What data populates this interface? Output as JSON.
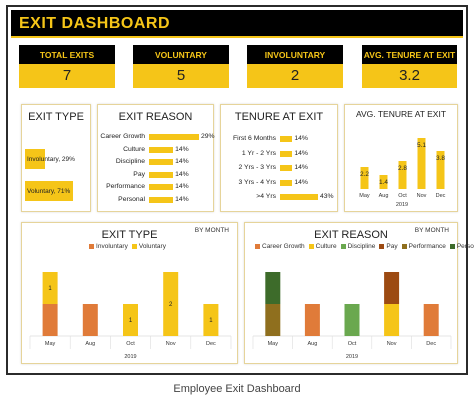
{
  "header": {
    "title": "EXIT DASHBOARD"
  },
  "kpis": [
    {
      "label": "TOTAL EXITS",
      "value": "7"
    },
    {
      "label": "VOLUNTARY",
      "value": "5"
    },
    {
      "label": "INVOLUNTARY",
      "value": "2"
    },
    {
      "label": "AVG. TENURE AT EXIT",
      "value": "3.2"
    }
  ],
  "colors": {
    "gold": "#f5c518",
    "orange": "#e07b39",
    "green": "#6aa84f",
    "darkgreen": "#3d6b2a",
    "brown": "#9c4a12",
    "olive": "#8f6f1e"
  },
  "exit_type": {
    "title": "EXIT TYPE",
    "items": [
      {
        "label": "Involuntary, 29%",
        "value": 29
      },
      {
        "label": "Voluntary, 71%",
        "value": 71
      }
    ]
  },
  "exit_reason": {
    "title": "EXIT REASON",
    "items": [
      {
        "label": "Career Growth",
        "pct": "29%",
        "value": 29
      },
      {
        "label": "Culture",
        "pct": "14%",
        "value": 14
      },
      {
        "label": "Discipline",
        "pct": "14%",
        "value": 14
      },
      {
        "label": "Pay",
        "pct": "14%",
        "value": 14
      },
      {
        "label": "Performance",
        "pct": "14%",
        "value": 14
      },
      {
        "label": "Personal",
        "pct": "14%",
        "value": 14
      }
    ]
  },
  "tenure": {
    "title": "TENURE AT EXIT",
    "items": [
      {
        "label": "First 6 Months",
        "pct": "14%",
        "value": 14
      },
      {
        "label": "1 Yr - 2 Yrs",
        "pct": "14%",
        "value": 14
      },
      {
        "label": "2 Yrs - 3 Yrs",
        "pct": "14%",
        "value": 14
      },
      {
        "label": "3 Yrs - 4 Yrs",
        "pct": "14%",
        "value": 14
      },
      {
        "label": ">4 Yrs",
        "pct": "43%",
        "value": 43
      }
    ]
  },
  "avg_tenure_chart": {
    "title": "AVG. TENURE AT EXIT",
    "year": "2019",
    "chart_data": {
      "type": "bar",
      "categories": [
        "May",
        "Aug",
        "Oct",
        "Nov",
        "Dec"
      ],
      "values": [
        2.2,
        1.4,
        2.8,
        5.1,
        3.8
      ],
      "labels": [
        "2.2",
        "1.4",
        "2.8",
        "5.1",
        "3.8"
      ],
      "ylim": [
        0,
        6
      ]
    }
  },
  "exit_type_month": {
    "title": "EXIT TYPE",
    "by_month": "BY MONTH",
    "year": "2019",
    "legend": [
      {
        "name": "Involuntary",
        "color": "#e07b39"
      },
      {
        "name": "Voluntary",
        "color": "#f5c518"
      }
    ],
    "chart_data": {
      "type": "bar",
      "stacked": true,
      "categories": [
        "May",
        "Aug",
        "Oct",
        "Nov",
        "Dec"
      ],
      "series": [
        {
          "name": "Involuntary",
          "values": [
            1,
            1,
            0,
            0,
            0
          ]
        },
        {
          "name": "Voluntary",
          "values": [
            1,
            0,
            1,
            2,
            1
          ]
        }
      ],
      "labels": [
        [
          "",
          "1"
        ],
        [
          "",
          ""
        ],
        [
          "",
          "1"
        ],
        [
          "",
          "2"
        ],
        [
          "",
          "1"
        ]
      ],
      "ylim": [
        0,
        2
      ]
    }
  },
  "exit_reason_month": {
    "title": "EXIT REASON",
    "by_month": "BY MONTH",
    "year": "2019",
    "legend": [
      {
        "name": "Career Growth",
        "color": "#e07b39"
      },
      {
        "name": "Culture",
        "color": "#f5c518"
      },
      {
        "name": "Discipline",
        "color": "#6aa84f"
      },
      {
        "name": "Pay",
        "color": "#9c4a12"
      },
      {
        "name": "Performance",
        "color": "#8f6f1e"
      },
      {
        "name": "Personal",
        "color": "#3d6b2a"
      }
    ],
    "chart_data": {
      "type": "bar",
      "stacked": true,
      "categories": [
        "May",
        "Aug",
        "Oct",
        "Nov",
        "Dec"
      ],
      "series": [
        {
          "name": "Performance",
          "values": [
            1,
            0,
            0,
            0,
            0
          ]
        },
        {
          "name": "Personal",
          "values": [
            1,
            0,
            0,
            0,
            0
          ]
        },
        {
          "name": "Discipline",
          "values": [
            0,
            0,
            1,
            0,
            0
          ]
        },
        {
          "name": "Culture",
          "values": [
            0,
            0,
            0,
            1,
            0
          ]
        },
        {
          "name": "Pay",
          "values": [
            0,
            0,
            0,
            1,
            0
          ]
        },
        {
          "name": "Career Growth",
          "values": [
            0,
            1,
            0,
            0,
            1
          ]
        }
      ],
      "ylim": [
        0,
        2
      ]
    }
  },
  "caption": "Employee Exit Dashboard"
}
